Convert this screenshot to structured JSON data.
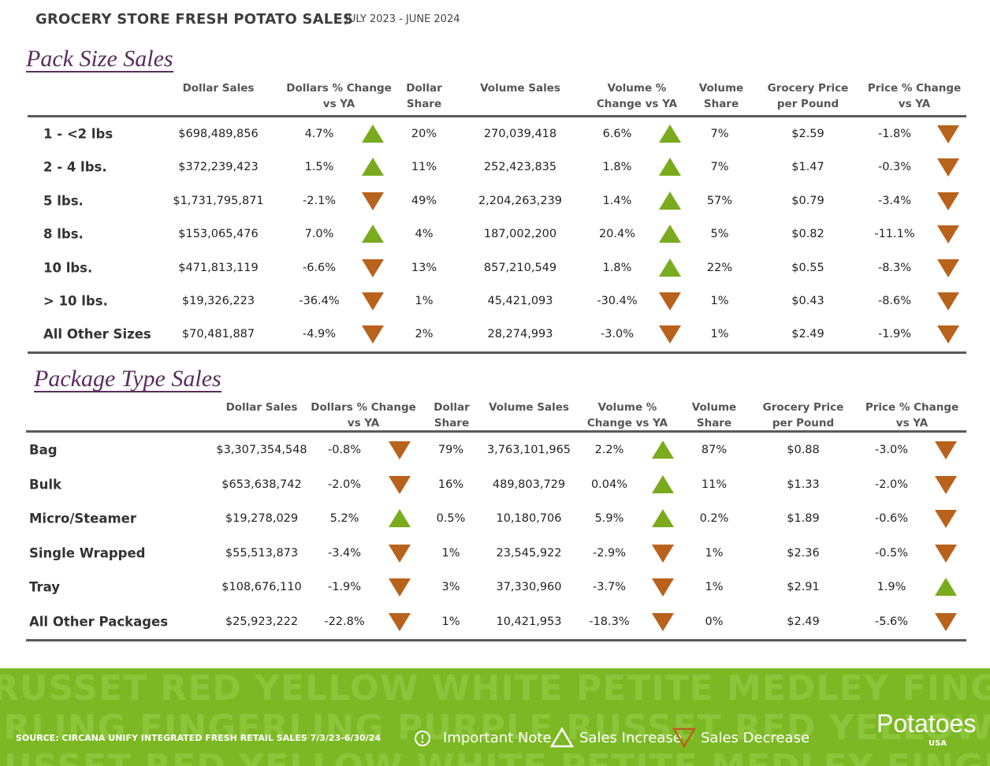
{
  "header": {
    "title": "GROCERY STORE  FRESH POTATO SALES",
    "subtitle": "JULY 2023 - JUNE 2024"
  },
  "sections": [
    {
      "title": "Pack Size Sales",
      "columns": [
        "Dollar Sales",
        "Dollars % Change vs YA",
        "Dollar Share",
        "Volume Sales",
        "Volume % Change vs YA",
        "Volume Share",
        "Grocery Price per Pound",
        "Price % Change vs YA"
      ],
      "rows": [
        [
          "1 - <2 lbs",
          "$698,489,856",
          "4.7%",
          "20%",
          "270,039,418",
          "6.6%",
          "7%",
          "$2.59",
          "-1.8%"
        ],
        [
          "2 - 4 lbs.",
          "$372,239,423",
          "1.5%",
          "11%",
          "252,423,835",
          "1.8%",
          "7%",
          "$1.47",
          "-0.3%"
        ],
        [
          "5 lbs.",
          "$1,731,795,871",
          "-2.1%",
          "49%",
          "2,204,263,239",
          "1.4%",
          "57%",
          "$0.79",
          "-3.4%"
        ],
        [
          "8 lbs.",
          "$153,065,476",
          "7.0%",
          "4%",
          "187,002,200",
          "20.4%",
          "5%",
          "$0.82",
          "-11.1%"
        ],
        [
          "10 lbs.",
          "$471,813,119",
          "-6.6%",
          "13%",
          "857,210,549",
          "1.8%",
          "22%",
          "$0.55",
          "-8.3%"
        ],
        [
          "> 10 lbs.",
          "$19,326,223",
          "-36.4%",
          "1%",
          "45,421,093",
          "-30.4%",
          "1%",
          "$0.43",
          "-8.6%"
        ],
        [
          "All Other Sizes",
          "$70,481,887",
          "-4.9%",
          "2%",
          "28,274,993",
          "-3.0%",
          "1%",
          "$2.49",
          "-1.9%"
        ]
      ]
    },
    {
      "title": "Package Type Sales",
      "columns": [
        "Dollar Sales",
        "Dollars % Change vs YA",
        "Dollar Share",
        "Volume Sales",
        "Volume % Change vs YA",
        "Volume Share",
        "Grocery Price per Pound",
        "Price % Change vs YA"
      ],
      "rows": [
        [
          "Bag",
          "$3,307,354,548",
          "-0.8%",
          "79%",
          "3,763,101,965",
          "2.2%",
          "87%",
          "$0.88",
          "-3.0%"
        ],
        [
          "Bulk",
          "$653,638,742",
          "-2.0%",
          "16%",
          "489,803,729",
          "0.04%",
          "11%",
          "$1.33",
          "-2.0%"
        ],
        [
          "Micro/Steamer",
          "$19,278,029",
          "5.2%",
          "0.5%",
          "10,180,706",
          "5.9%",
          "0.2%",
          "$1.89",
          "-0.6%"
        ],
        [
          "Single Wrapped",
          "$55,513,873",
          "-3.4%",
          "1%",
          "23,545,922",
          "-2.9%",
          "1%",
          "$2.36",
          "-0.5%"
        ],
        [
          "Tray",
          "$108,676,110",
          "-1.9%",
          "3%",
          "37,330,960",
          "-3.7%",
          "1%",
          "$2.91",
          "1.9%"
        ],
        [
          "All Other Packages",
          "$25,923,222",
          "-22.8%",
          "1%",
          "10,421,953",
          "-18.3%",
          "0%",
          "$2.49",
          "-5.6%"
        ]
      ]
    }
  ],
  "footer": {
    "background": [
      "RUSSET RED YELLOW WHITE PETITE MEDLEY FINGERLING",
      "FINGERLING FINGERLING PURPLE RUSSET RED YELLOW WHITE",
      "RUSSET RED YELLOW WHITE PETITE MEDLEY FINGERLING"
    ],
    "source": "SOURCE: CIRCANA UNIFY INTEGRATED FRESH  RETAIL SALES 7/3/23-6/30/24",
    "legend": [
      "Important Note",
      "Sales Increase",
      "Sales Decrease"
    ],
    "logo": "Potatoes",
    "logo_sub": "USA"
  }
}
